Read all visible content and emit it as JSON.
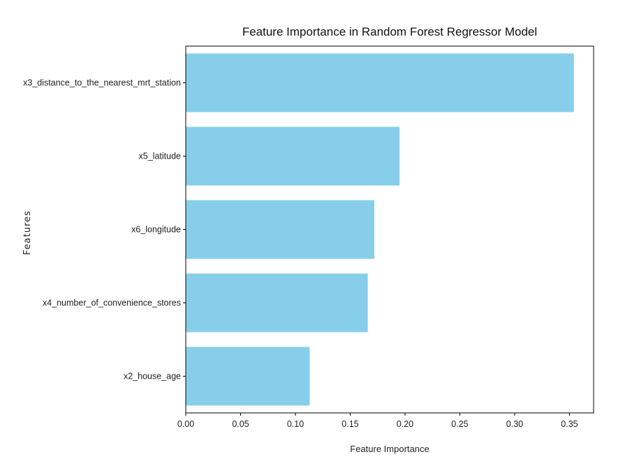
{
  "chart_data": {
    "type": "bar",
    "orientation": "horizontal",
    "title": "Feature Importance in Random Forest Regressor Model",
    "xlabel": "Feature Importance",
    "ylabel": "Features",
    "categories": [
      "x3_distance_to_the_nearest_mrt_station",
      "x5_latitude",
      "x6_longitude",
      "x4_number_of_convenience_stores",
      "x2_house_age"
    ],
    "values": [
      0.354,
      0.195,
      0.172,
      0.166,
      0.113
    ],
    "xlim": [
      0,
      0.372
    ],
    "xticks": [
      0.0,
      0.05,
      0.1,
      0.15,
      0.2,
      0.25,
      0.3,
      0.35
    ],
    "xtick_labels": [
      "0.00",
      "0.05",
      "0.10",
      "0.15",
      "0.20",
      "0.25",
      "0.30",
      "0.35"
    ],
    "bar_color": "#87CEEB",
    "grid": false,
    "legend": "none"
  }
}
